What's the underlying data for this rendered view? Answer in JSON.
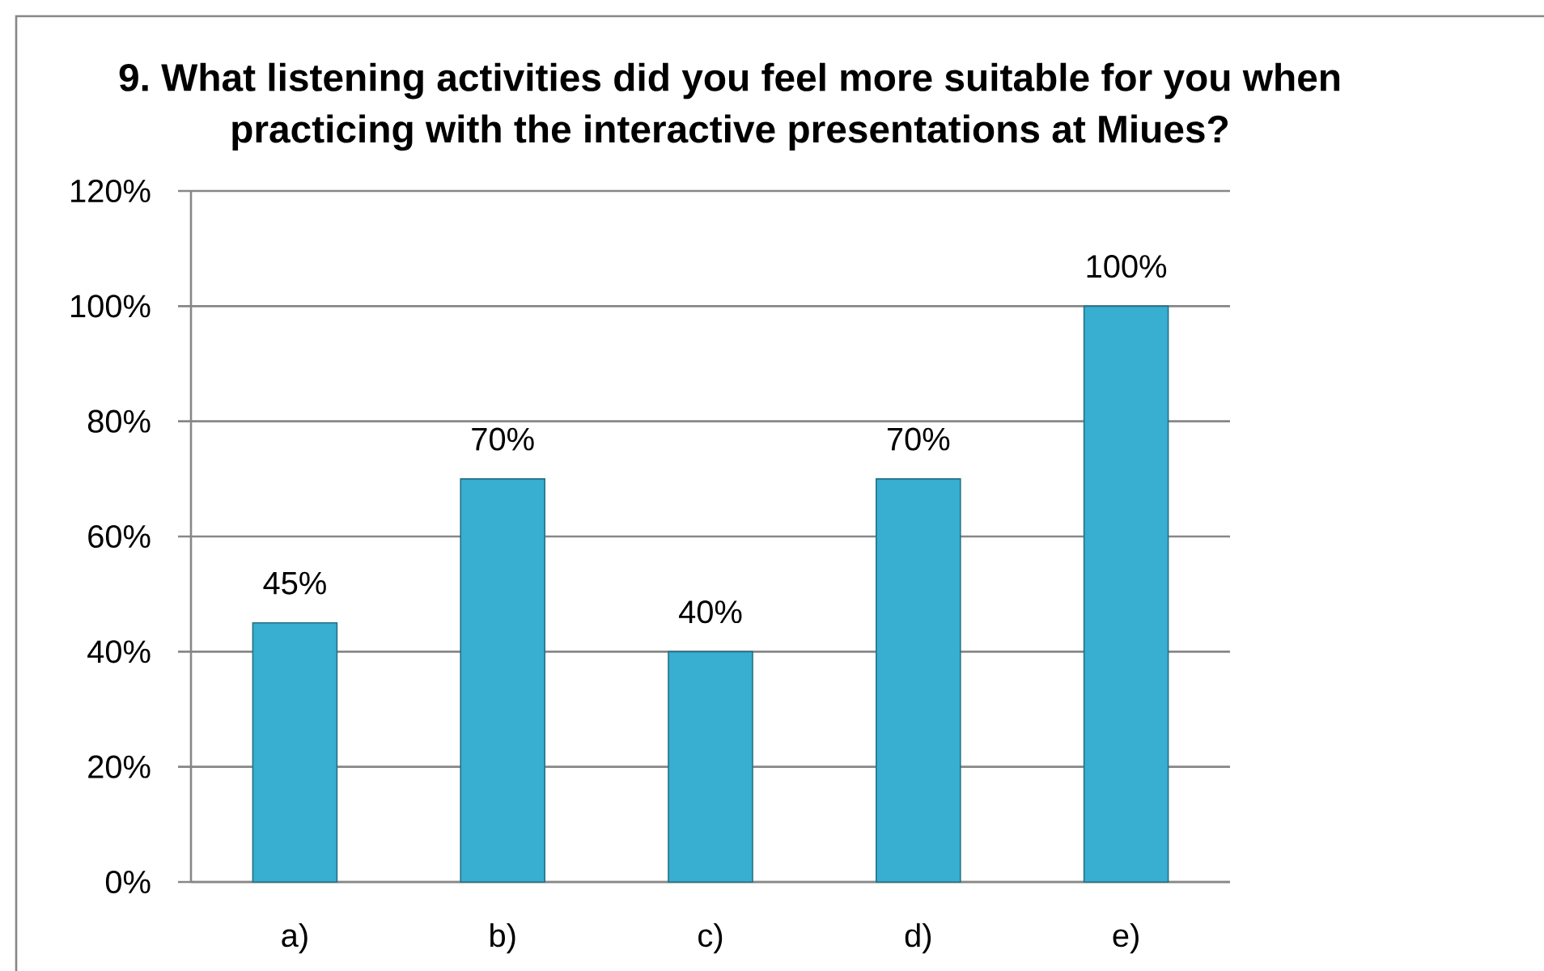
{
  "chart_data": {
    "type": "bar",
    "title": "9. What listening activities did you feel more suitable for you when practicing with the interactive presentations at Miues?",
    "categories": [
      "a)",
      "b)",
      "c)",
      "d)",
      "e)"
    ],
    "values": [
      45,
      70,
      40,
      70,
      100
    ],
    "value_labels": [
      "45%",
      "70%",
      "40%",
      "70%",
      "100%"
    ],
    "color": "#38aed0",
    "ylim": [
      0,
      120
    ],
    "yticks": [
      {
        "value": 0,
        "label": "0%"
      },
      {
        "value": 20,
        "label": "20%"
      },
      {
        "value": 40,
        "label": "40%"
      },
      {
        "value": 60,
        "label": "60%"
      },
      {
        "value": 80,
        "label": "80%"
      },
      {
        "value": 100,
        "label": "100%"
      },
      {
        "value": 120,
        "label": "120%"
      }
    ],
    "grid": "y"
  }
}
